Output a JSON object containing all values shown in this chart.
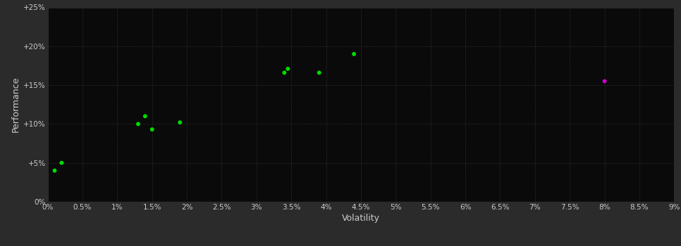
{
  "green_points": [
    [
      0.1,
      4.0
    ],
    [
      0.2,
      5.0
    ],
    [
      1.3,
      10.0
    ],
    [
      1.4,
      11.0
    ],
    [
      1.5,
      9.3
    ],
    [
      1.9,
      10.2
    ],
    [
      3.4,
      16.6
    ],
    [
      3.45,
      17.1
    ],
    [
      3.9,
      16.6
    ],
    [
      4.4,
      19.0
    ]
  ],
  "magenta_points": [
    [
      8.0,
      15.5
    ]
  ],
  "green_color": "#00dd00",
  "magenta_color": "#cc00cc",
  "background_color": "#2b2b2b",
  "plot_bg_color": "#0a0a0a",
  "grid_color": "#3a3a3a",
  "text_color": "#cccccc",
  "xlabel": "Volatility",
  "ylabel": "Performance",
  "xlim": [
    0.0,
    9.0
  ],
  "ylim": [
    0.0,
    25.0
  ],
  "xtick_labels": [
    "0%",
    "0.5%",
    "1%",
    "1.5%",
    "2%",
    "2.5%",
    "3%",
    "3.5%",
    "4%",
    "4.5%",
    "5%",
    "5.5%",
    "6%",
    "6.5%",
    "7%",
    "7.5%",
    "8%",
    "8.5%",
    "9%"
  ],
  "xtick_values": [
    0.0,
    0.5,
    1.0,
    1.5,
    2.0,
    2.5,
    3.0,
    3.5,
    4.0,
    4.5,
    5.0,
    5.5,
    6.0,
    6.5,
    7.0,
    7.5,
    8.0,
    8.5,
    9.0
  ],
  "ytick_labels": [
    "0%",
    "+5%",
    "+10%",
    "+15%",
    "+20%",
    "+25%"
  ],
  "ytick_values": [
    0,
    5,
    10,
    15,
    20,
    25
  ],
  "marker_size": 18,
  "axis_fontsize": 9,
  "tick_fontsize": 7.5
}
